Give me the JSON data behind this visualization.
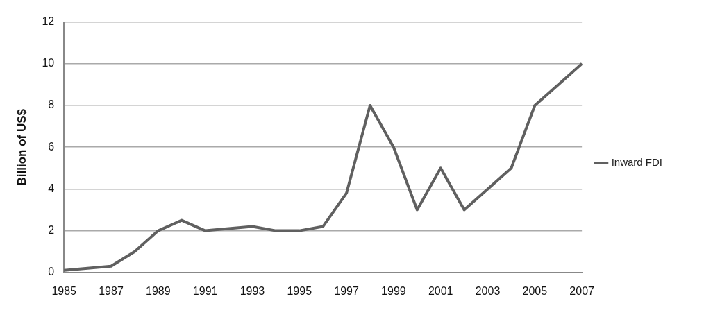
{
  "chart_data": {
    "type": "line",
    "ylabel": "Billion of US$",
    "categories": [
      "1985",
      null,
      "1987",
      null,
      "1989",
      null,
      "1991",
      null,
      "1993",
      null,
      "1995",
      null,
      "1997",
      null,
      "1999",
      null,
      "2001",
      null,
      "2003",
      null,
      "2005",
      null,
      "2007"
    ],
    "series": [
      {
        "name": "Inward FDI",
        "color": "#606060",
        "values": [
          0.1,
          0.2,
          0.3,
          1.0,
          2.0,
          2.5,
          2.0,
          2.1,
          2.2,
          2.0,
          2.0,
          2.2,
          3.8,
          8.0,
          6.0,
          3.0,
          5.0,
          3.0,
          4.0,
          5.0,
          8.0,
          9.0,
          10.0
        ]
      }
    ],
    "ylim": [
      0,
      12
    ],
    "yticks": [
      0,
      2,
      4,
      6,
      8,
      10,
      12
    ],
    "grid": "y",
    "legend": "right",
    "marker": "none",
    "line_style": "solid"
  }
}
